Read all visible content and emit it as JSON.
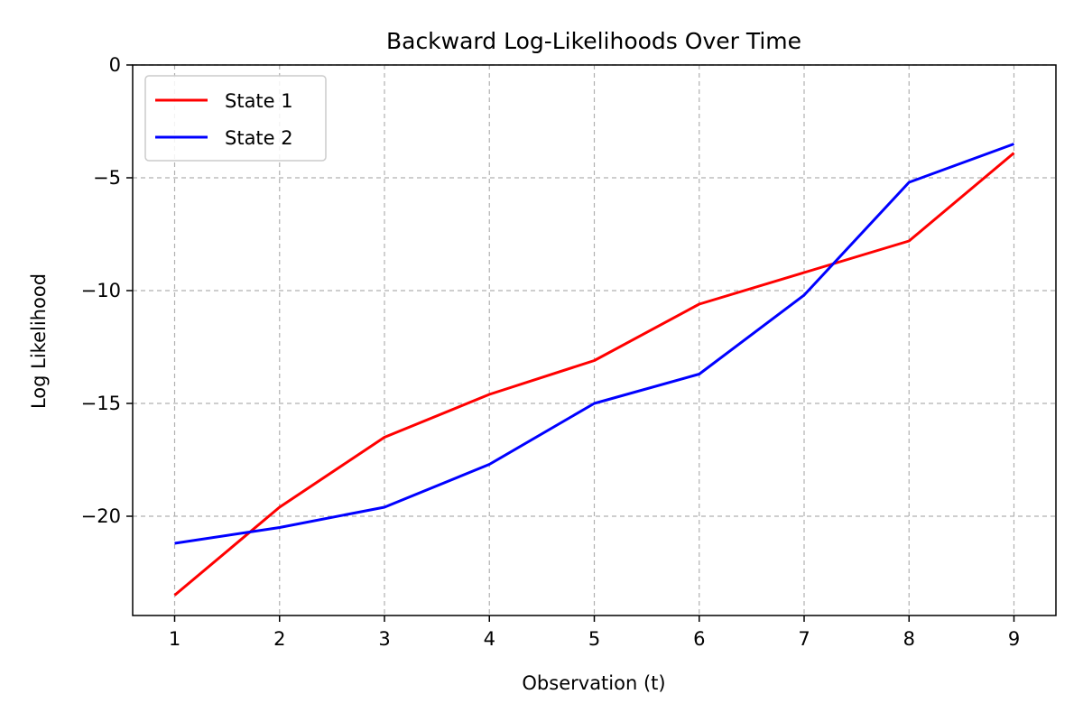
{
  "chart_data": {
    "type": "line",
    "title": "Backward Log-Likelihoods Over Time",
    "xlabel": "Observation (t)",
    "ylabel": "Log Likelihood",
    "x": [
      1,
      2,
      3,
      4,
      5,
      6,
      7,
      8,
      9
    ],
    "xlim": [
      0.6,
      9.4
    ],
    "ylim": [
      -24.4,
      0
    ],
    "xticks": [
      1,
      2,
      3,
      4,
      5,
      6,
      7,
      8,
      9
    ],
    "yticks": [
      0,
      -5,
      -10,
      -15,
      -20
    ],
    "ytick_labels": [
      "0",
      "−5",
      "−10",
      "−15",
      "−20"
    ],
    "grid": true,
    "legend_position": "upper-left",
    "series": [
      {
        "name": "State 1",
        "color": "#ff0000",
        "values": [
          -23.5,
          -19.6,
          -16.5,
          -14.6,
          -13.1,
          -10.6,
          -9.2,
          -7.8,
          -3.9
        ]
      },
      {
        "name": "State 2",
        "color": "#0000ff",
        "values": [
          -21.2,
          -20.5,
          -19.6,
          -17.7,
          -15.0,
          -13.7,
          -10.2,
          -5.2,
          -3.5
        ]
      }
    ]
  }
}
